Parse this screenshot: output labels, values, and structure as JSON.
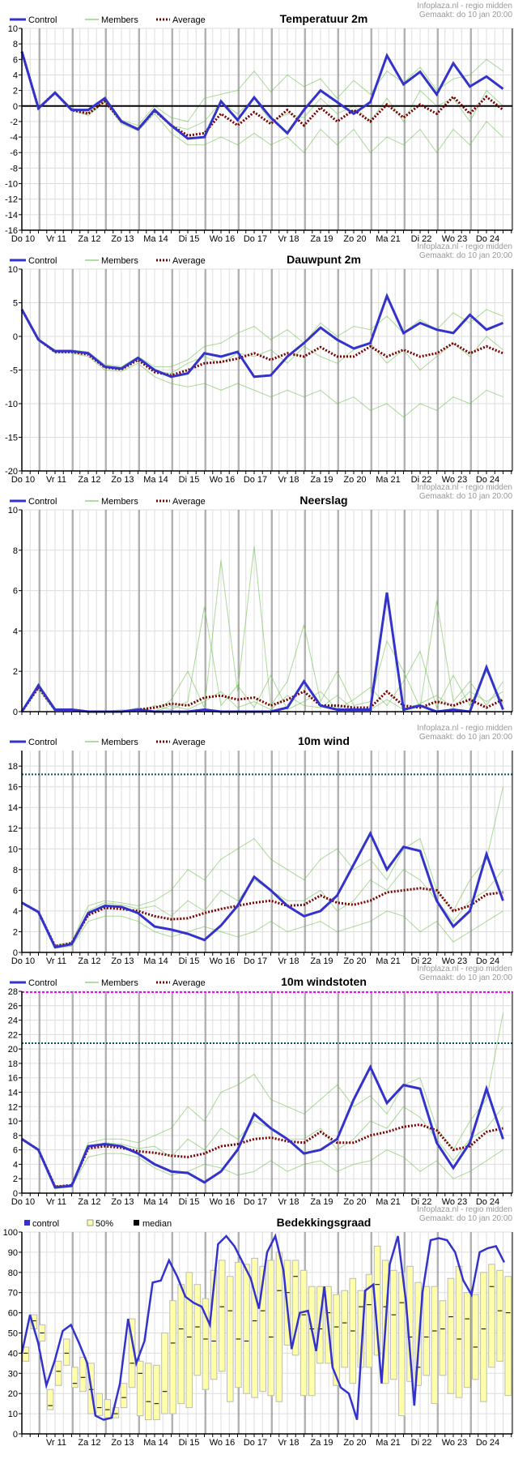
{
  "header": {
    "source": "Infoplaza.nl - regio midden",
    "made": "Gemaakt: do 10 jan 20:00"
  },
  "legend": {
    "control": "Control",
    "members": "Members",
    "average": "Average",
    "cover_control": "control",
    "cover_band": "50%",
    "cover_median": "median"
  },
  "days": [
    "Do 10",
    "Vr 11",
    "Za 12",
    "Zo 13",
    "Ma 14",
    "Di 15",
    "Wo 16",
    "Do 17",
    "Vr 18",
    "Za 19",
    "Zo 20",
    "Ma 21",
    "Di 22",
    "Wo 23",
    "Do 24"
  ],
  "colors": {
    "control": "#3333cc",
    "members": "#66bb44",
    "average": "#770000",
    "band": "#ffffaa",
    "threshold": "#005566",
    "max_line": "#ff00ff"
  },
  "chart_data": [
    {
      "type": "line",
      "title": "Temperatuur 2m",
      "ylim": [
        -16,
        10
      ],
      "yticks": [
        10,
        8,
        6,
        4,
        2,
        0,
        -2,
        -4,
        -6,
        -8,
        -10,
        -12,
        -14,
        -16
      ],
      "zero_line": true,
      "show_x_labels": true,
      "control": [
        7,
        -0.3,
        1.7,
        -0.5,
        -0.5,
        1,
        -2,
        -3,
        -0.5,
        -2.5,
        -4.2,
        -4,
        0.6,
        -1.8,
        1.1,
        -1.5,
        -3.5,
        -0.5,
        2,
        0.5,
        -1,
        0.5,
        6.5,
        2.8,
        4.4,
        1.5,
        5.5,
        2.5,
        3.8,
        2.2
      ],
      "average": [
        7,
        -0.3,
        1.7,
        -0.5,
        -1,
        0.6,
        -2,
        -3,
        -0.6,
        -2.5,
        -3.8,
        -3.5,
        -1,
        -2.5,
        -0.8,
        -2.3,
        -0.5,
        -2.5,
        -0.2,
        -2,
        -0.5,
        -2,
        0.2,
        -1.5,
        0.2,
        -1,
        1.2,
        -1,
        1.2,
        -0.5
      ],
      "members": [
        [
          7,
          -0.3,
          1.9,
          -0.3,
          -0.8,
          0.8,
          -1.8,
          -2.5,
          0,
          -1.5,
          -2,
          1,
          1.5,
          2,
          4.5,
          1.8,
          4,
          2.5,
          3.5,
          1,
          3.3,
          1.5,
          4.5,
          3,
          5,
          2,
          3.5,
          4,
          6,
          4.5
        ],
        [
          7,
          -0.3,
          1.6,
          -0.6,
          -1.2,
          0.5,
          -2.3,
          -3.2,
          -1,
          -3.5,
          -5,
          -5,
          -4,
          -5,
          -3.5,
          -5,
          -4,
          -6,
          -3,
          -5,
          -3,
          -6,
          -4,
          -5,
          -3,
          -6,
          -3,
          -5,
          -2,
          -4
        ],
        [
          7,
          -0.3,
          1.7,
          -0.5,
          -1,
          0.6,
          -2,
          -3,
          -0.6,
          -2.5,
          -3,
          -2,
          0.5,
          -1,
          1,
          -2,
          -1,
          -1.5,
          1,
          -1,
          0,
          -2,
          1,
          -2,
          2,
          0,
          1,
          -2,
          2,
          0
        ]
      ]
    },
    {
      "type": "line",
      "title": "Dauwpunt 2m",
      "ylim": [
        -20,
        10
      ],
      "yticks": [
        10,
        5,
        0,
        -5,
        -10,
        -15,
        -20
      ],
      "show_x_labels": true,
      "control": [
        4,
        -0.5,
        -2.2,
        -2.2,
        -2.5,
        -4.5,
        -4.8,
        -3.2,
        -5,
        -6,
        -5.5,
        -2.5,
        -3,
        -2.3,
        -6,
        -5.8,
        -3,
        -1,
        1.3,
        -0.5,
        -1.8,
        -1,
        6,
        0.5,
        2,
        1,
        0.5,
        3.2,
        1,
        2
      ],
      "average": [
        4,
        -0.5,
        -2.3,
        -2.3,
        -2.7,
        -4.6,
        -4.9,
        -3.5,
        -5.3,
        -5.8,
        -5,
        -4,
        -3.8,
        -3.3,
        -2.5,
        -3.5,
        -2.5,
        -3,
        -1.6,
        -3,
        -3,
        -1.5,
        -3,
        -2,
        -3,
        -2.5,
        -1,
        -2.5,
        -1.5,
        -2.5
      ],
      "members": [
        [
          4,
          -0.5,
          -2,
          -2,
          -2.3,
          -4.2,
          -4.5,
          -3,
          -4.5,
          -4.5,
          -3.5,
          -1.5,
          -1,
          0.5,
          1.5,
          -0.5,
          1,
          -1,
          2,
          0,
          1.5,
          1,
          3,
          0.5,
          2.5,
          1,
          3.5,
          2,
          4,
          3
        ],
        [
          4,
          -0.5,
          -2.5,
          -2.5,
          -3,
          -5,
          -5.2,
          -4,
          -6,
          -7,
          -7.5,
          -7,
          -8,
          -7,
          -8,
          -9,
          -8,
          -9,
          -8,
          -10,
          -9,
          -11,
          -10,
          -12,
          -10,
          -11,
          -9,
          -10,
          -8,
          -9
        ],
        [
          4,
          -0.5,
          -2.2,
          -2.2,
          -2.6,
          -4.6,
          -4.9,
          -3.3,
          -5.2,
          -5.5,
          -4,
          -3,
          -4,
          -2.5,
          -3,
          -2,
          -4,
          -1.5,
          -3,
          -4,
          -2,
          -1,
          -4,
          -2,
          -5,
          -3,
          -1,
          -3,
          0,
          -2
        ]
      ]
    },
    {
      "type": "line",
      "title": "Neerslag",
      "ylim": [
        0,
        10
      ],
      "yticks": [
        10,
        8,
        6,
        4,
        2,
        0
      ],
      "show_x_labels": false,
      "control": [
        0,
        1.3,
        0.1,
        0.1,
        0,
        0,
        0,
        0.1,
        0,
        0,
        0,
        0.1,
        0,
        0,
        0,
        0,
        0.2,
        1.5,
        0.3,
        0.1,
        0.1,
        0.1,
        5.9,
        0.1,
        0.3,
        0,
        0.1,
        0,
        2.2,
        0.1
      ],
      "average": [
        0,
        1.2,
        0.1,
        0.1,
        0,
        0,
        0,
        0.1,
        0.2,
        0.4,
        0.3,
        0.7,
        0.8,
        0.6,
        0.7,
        0.3,
        0.6,
        1.0,
        0.3,
        0.3,
        0.2,
        0.2,
        1.0,
        0.3,
        0.2,
        0.5,
        0.3,
        0.6,
        0.2,
        0.6
      ],
      "members": [
        [
          0,
          1.4,
          0.1,
          0.1,
          0,
          0,
          0,
          0.2,
          0,
          0.6,
          2,
          0.2,
          7.5,
          1,
          8.2,
          0.3,
          1.5,
          4.3,
          0.5,
          2,
          0.3,
          0.5,
          3.5,
          2,
          0.2,
          5.5,
          0.5,
          1.5,
          0.3,
          1.5
        ],
        [
          0,
          1.1,
          0,
          0,
          0,
          0,
          0,
          0,
          0.3,
          0.1,
          0.5,
          5.2,
          0.3,
          1.3,
          0.2,
          1.8,
          0.1,
          0.5,
          1,
          0.1,
          0.6,
          1.2,
          0.3,
          1.5,
          3,
          0.2,
          1.8,
          0.3,
          2,
          0.4
        ],
        [
          0,
          1.3,
          0.1,
          0,
          0,
          0,
          0.1,
          0,
          0,
          0.3,
          0.1,
          0.5,
          1,
          0.2,
          0.5,
          0.1,
          0.8,
          0.3,
          0.2,
          0.8,
          0.1,
          0.1,
          0.6,
          0.1,
          0.4,
          0.8,
          0.2,
          1,
          0.5,
          1
        ]
      ]
    },
    {
      "type": "line",
      "title": "10m wind",
      "ylim": [
        0,
        19.5
      ],
      "yticks": [
        18,
        16,
        14,
        12,
        10,
        8,
        6,
        4,
        2,
        0
      ],
      "threshold": 17.2,
      "show_x_labels": true,
      "control": [
        4.8,
        3.9,
        0.5,
        0.8,
        3.8,
        4.5,
        4.4,
        3.8,
        2.5,
        2.2,
        1.8,
        1.2,
        2.6,
        4.5,
        7.3,
        6,
        4.5,
        3.5,
        4,
        5.5,
        8.5,
        11.5,
        8,
        10.2,
        9.8,
        5,
        2.5,
        4,
        9.5,
        5
      ],
      "average": [
        4.8,
        3.9,
        0.6,
        0.9,
        3.6,
        4.3,
        4.2,
        4,
        3.5,
        3.2,
        3.3,
        3.8,
        4.2,
        4.5,
        4.8,
        5,
        4.5,
        4.6,
        5.5,
        4.8,
        4.6,
        5,
        5.8,
        6,
        6.2,
        6,
        4,
        4.5,
        5.6,
        5.8
      ],
      "members": [
        [
          4.8,
          3.9,
          0.7,
          1,
          4.5,
          5,
          4.8,
          4.5,
          5,
          6,
          8,
          7,
          9,
          10,
          11,
          9,
          8,
          7,
          9,
          10,
          8,
          9,
          7,
          10,
          11,
          6,
          4,
          7,
          9,
          16
        ],
        [
          4.8,
          3.9,
          0.4,
          0.6,
          3,
          3.5,
          3.5,
          3,
          2,
          1.5,
          2,
          2.5,
          2,
          1.5,
          2,
          3,
          2,
          2.5,
          3,
          2,
          2.5,
          3,
          4,
          3.5,
          2,
          3,
          1,
          2,
          3,
          4
        ],
        [
          4.8,
          3.9,
          0.5,
          0.8,
          4,
          4.8,
          4.6,
          4.2,
          4.5,
          3.5,
          5,
          4,
          6,
          5,
          7,
          6,
          5,
          5,
          6,
          4,
          5,
          7,
          6,
          8,
          7,
          5,
          3,
          5,
          6,
          8
        ]
      ]
    },
    {
      "type": "line",
      "title": "10m windstoten",
      "ylim": [
        0,
        28
      ],
      "yticks": [
        28,
        26,
        24,
        22,
        20,
        18,
        16,
        14,
        12,
        10,
        8,
        6,
        4,
        2,
        0
      ],
      "threshold": 20.8,
      "max_line": 28,
      "show_x_labels": true,
      "control": [
        7.5,
        6,
        0.8,
        1,
        6.5,
        6.8,
        6.5,
        5.5,
        4,
        3,
        2.8,
        1.5,
        3,
        6,
        11,
        9,
        7.5,
        5.5,
        6,
        7.5,
        13,
        17.5,
        12.5,
        15,
        14.5,
        7,
        3.5,
        7,
        14.5,
        7.5
      ],
      "average": [
        7.5,
        6,
        0.9,
        1.1,
        6.2,
        6.5,
        6.3,
        5.8,
        5.6,
        5.2,
        5,
        5.5,
        6.5,
        6.8,
        7.5,
        7.7,
        7.2,
        7,
        8.5,
        7,
        7,
        8,
        8.5,
        9.2,
        9.5,
        8.7,
        6,
        6.5,
        8.5,
        9
      ],
      "members": [
        [
          7.5,
          6,
          1,
          1.2,
          7,
          7.5,
          7.5,
          7,
          8,
          9,
          12,
          10,
          14,
          15,
          16.5,
          13,
          12,
          11,
          13,
          15,
          12,
          13.5,
          11,
          15,
          16,
          9,
          6,
          10,
          13,
          25
        ],
        [
          7.5,
          6,
          0.6,
          0.9,
          5,
          5.5,
          5.5,
          5,
          3.5,
          2.5,
          3,
          4,
          3.5,
          2.5,
          3,
          4.5,
          3,
          4,
          4.5,
          3,
          4,
          4.5,
          6,
          5,
          3,
          4.5,
          2,
          3,
          4.5,
          6
        ],
        [
          7.5,
          6,
          0.8,
          1,
          6.2,
          7,
          6.8,
          6.2,
          6.5,
          5,
          7.5,
          6,
          9,
          7.5,
          10,
          9,
          7.5,
          7.5,
          9,
          6,
          7.5,
          10,
          9,
          12,
          10.5,
          7.5,
          4.5,
          7.5,
          9,
          12
        ]
      ]
    },
    {
      "type": "bar",
      "title": "Bedekkingsgraad",
      "ylim": [
        0,
        100
      ],
      "yticks": [
        100,
        90,
        80,
        70,
        60,
        50,
        40,
        30,
        20,
        10,
        0
      ],
      "show_x_labels": true,
      "skip_first_label": true,
      "control": [
        40,
        59,
        45,
        24,
        36,
        51,
        54,
        45,
        35,
        9,
        7,
        8,
        25,
        57,
        35,
        46,
        75,
        76,
        86,
        78,
        68,
        65,
        63,
        54,
        94,
        98,
        93,
        85,
        77,
        62,
        90,
        98,
        81,
        42,
        60,
        61,
        41,
        73,
        33,
        23,
        20,
        7,
        71,
        74,
        25,
        84,
        98,
        65,
        14,
        70,
        96,
        97,
        96,
        90,
        76,
        69,
        90,
        92,
        93,
        85
      ],
      "boxes": [
        [
          36,
          43,
          40
        ],
        [
          52,
          59,
          56
        ],
        [
          46,
          54,
          50
        ],
        [
          12,
          22,
          14
        ],
        [
          24,
          36,
          31
        ],
        [
          34,
          47,
          40
        ],
        [
          23,
          33,
          25
        ],
        [
          21,
          38,
          28
        ],
        [
          10,
          35,
          22
        ],
        [
          9,
          20,
          13
        ],
        [
          8,
          17,
          12
        ],
        [
          8,
          13,
          10
        ],
        [
          13,
          25,
          18
        ],
        [
          23,
          57,
          35
        ],
        [
          9,
          36,
          30
        ],
        [
          7,
          35,
          16
        ],
        [
          7,
          34,
          15
        ],
        [
          10,
          50,
          21
        ],
        [
          10,
          66,
          45
        ],
        [
          15,
          74,
          52
        ],
        [
          13,
          80,
          48
        ],
        [
          29,
          74,
          53
        ],
        [
          22,
          67,
          47
        ],
        [
          27,
          81,
          46
        ],
        [
          31,
          86,
          63
        ],
        [
          16,
          78,
          61
        ],
        [
          23,
          85,
          47
        ],
        [
          20,
          84,
          46
        ],
        [
          18,
          87,
          56
        ],
        [
          21,
          83,
          61
        ],
        [
          19,
          86,
          48
        ],
        [
          16,
          90,
          71
        ],
        [
          44,
          86,
          70
        ],
        [
          39,
          86,
          78
        ],
        [
          19,
          81,
          59
        ],
        [
          19,
          73,
          52
        ],
        [
          35,
          73,
          52
        ],
        [
          35,
          73,
          60
        ],
        [
          24,
          69,
          53
        ],
        [
          33,
          71,
          55
        ],
        [
          25,
          77,
          51
        ],
        [
          33,
          71,
          63
        ],
        [
          33,
          79,
          64
        ],
        [
          39,
          93,
          74
        ],
        [
          25,
          86,
          63
        ],
        [
          27,
          81,
          59
        ],
        [
          9,
          80,
          65
        ],
        [
          26,
          83,
          48
        ],
        [
          24,
          75,
          33
        ],
        [
          29,
          73,
          48
        ],
        [
          15,
          73,
          51
        ],
        [
          29,
          66,
          52
        ],
        [
          20,
          77,
          58
        ],
        [
          18,
          83,
          47
        ],
        [
          23,
          70,
          57
        ],
        [
          27,
          69,
          43
        ],
        [
          16,
          80,
          52
        ],
        [
          33,
          84,
          73
        ],
        [
          36,
          81,
          61
        ],
        [
          19,
          78,
          60
        ]
      ]
    }
  ]
}
